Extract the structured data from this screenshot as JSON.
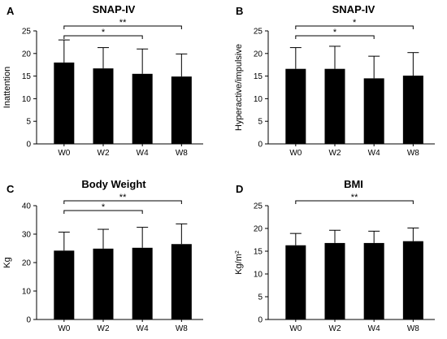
{
  "chart_data": [
    {
      "panel": "A",
      "type": "bar",
      "title": "SNAP-IV",
      "ylabel": "Inattention",
      "xlabel": "",
      "categories": [
        "W0",
        "W2",
        "W4",
        "W8"
      ],
      "values": [
        18.0,
        16.7,
        15.5,
        14.9
      ],
      "errors": [
        5.0,
        4.6,
        5.5,
        5.0
      ],
      "ylim": [
        0,
        25
      ],
      "yticks": [
        "0",
        "5",
        "10",
        "15",
        "20",
        "25"
      ],
      "yticks_values": [
        0,
        5,
        10,
        15,
        20,
        25
      ],
      "bar_color": "#000000",
      "significance": [
        {
          "from": "W0",
          "to": "W4",
          "label": "*",
          "level": "low"
        },
        {
          "from": "W0",
          "to": "W8",
          "label": "**",
          "level": "high"
        }
      ]
    },
    {
      "panel": "B",
      "type": "bar",
      "title": "SNAP-IV",
      "ylabel": "Hyperactive/impulsive",
      "xlabel": "",
      "categories": [
        "W0",
        "W2",
        "W4",
        "W8"
      ],
      "values": [
        16.6,
        16.6,
        14.5,
        15.1
      ],
      "errors": [
        4.7,
        5.0,
        4.9,
        5.1
      ],
      "ylim": [
        0,
        25
      ],
      "yticks": [
        "0",
        "5",
        "10",
        "15",
        "20",
        "25"
      ],
      "yticks_values": [
        0,
        5,
        10,
        15,
        20,
        25
      ],
      "bar_color": "#000000",
      "significance": [
        {
          "from": "W0",
          "to": "W4",
          "label": "*",
          "level": "low"
        },
        {
          "from": "W0",
          "to": "W8",
          "label": "*",
          "level": "high"
        }
      ]
    },
    {
      "panel": "C",
      "type": "bar",
      "title": "Body Weight",
      "ylabel": "Kg",
      "xlabel": "",
      "categories": [
        "W0",
        "W2",
        "W4",
        "W8"
      ],
      "values": [
        24.2,
        24.9,
        25.2,
        26.5
      ],
      "errors": [
        6.5,
        6.8,
        7.2,
        7.1
      ],
      "ylim": [
        0,
        40
      ],
      "yticks": [
        "0",
        "10",
        "20",
        "30",
        "40"
      ],
      "yticks_values": [
        0,
        10,
        20,
        30,
        40
      ],
      "bar_color": "#000000",
      "significance": [
        {
          "from": "W0",
          "to": "W4",
          "label": "*",
          "level": "low"
        },
        {
          "from": "W0",
          "to": "W8",
          "label": "**",
          "level": "high"
        }
      ]
    },
    {
      "panel": "D",
      "type": "bar",
      "title": "BMI",
      "ylabel": "Kg/m",
      "ylabel_superscript": "2",
      "xlabel": "",
      "categories": [
        "W0",
        "W2",
        "W4",
        "W8"
      ],
      "values": [
        16.3,
        16.8,
        16.8,
        17.2
      ],
      "errors": [
        2.6,
        2.8,
        2.6,
        2.9
      ],
      "ylim": [
        0,
        25
      ],
      "yticks": [
        "0",
        "5",
        "10",
        "15",
        "20",
        "25"
      ],
      "yticks_values": [
        0,
        5,
        10,
        15,
        20,
        25
      ],
      "bar_color": "#000000",
      "significance": [
        {
          "from": "W0",
          "to": "W8",
          "label": "**",
          "level": "high"
        }
      ]
    }
  ]
}
